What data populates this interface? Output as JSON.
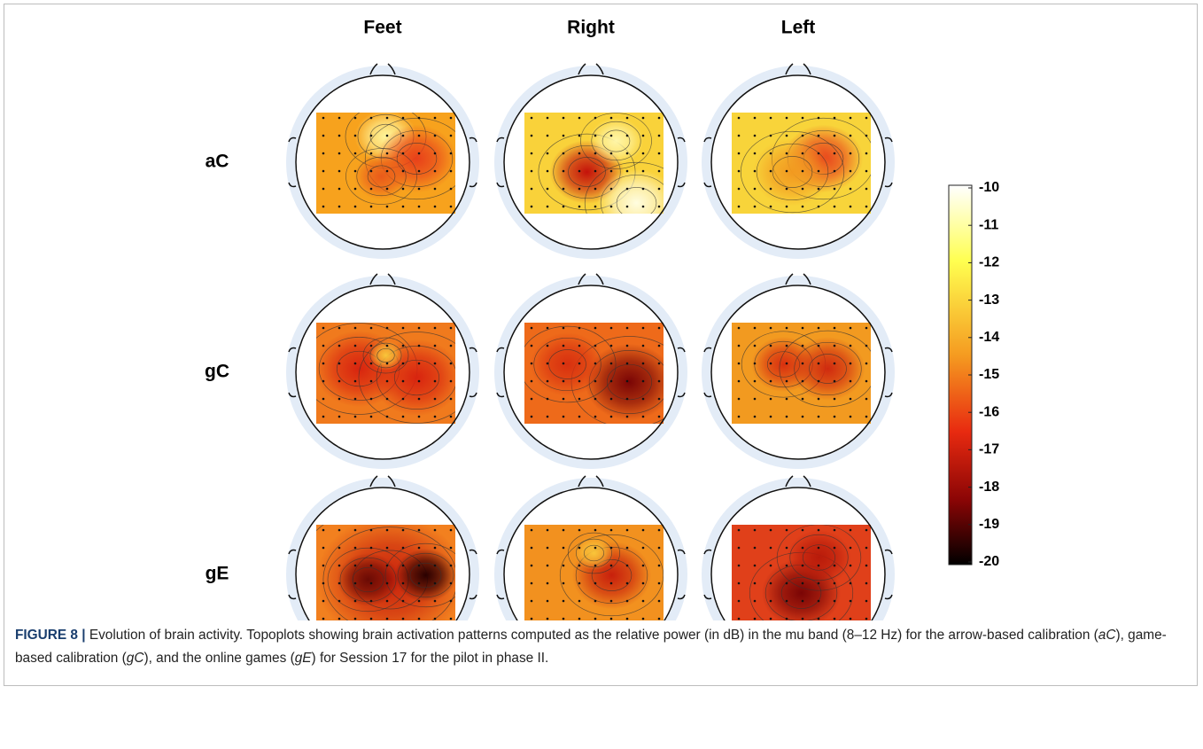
{
  "figure": {
    "columns": [
      "Feet",
      "Right",
      "Left"
    ],
    "rows": [
      "aC",
      "gC",
      "gE"
    ],
    "colorbar": {
      "lim": [
        -20,
        -10
      ],
      "ticks": [
        -10,
        -11,
        -12,
        -13,
        -14,
        -15,
        -16,
        -17,
        -18,
        -19,
        -20
      ]
    },
    "caption": {
      "label": "FIGURE 8 |",
      "segments": [
        {
          "text": " Evolution of brain activity. Topoplots showing brain activation patterns computed as the relative power (in dB) in the mu band (8–12 Hz) for the arrow-based calibration (",
          "italic": false
        },
        {
          "text": "aC",
          "italic": true
        },
        {
          "text": "), game-based calibration (",
          "italic": false
        },
        {
          "text": "gC",
          "italic": true
        },
        {
          "text": "), and the online games (",
          "italic": false
        },
        {
          "text": "gE",
          "italic": true
        },
        {
          "text": ") for Session 17 for the pilot in phase II.",
          "italic": false
        }
      ]
    }
  }
}
